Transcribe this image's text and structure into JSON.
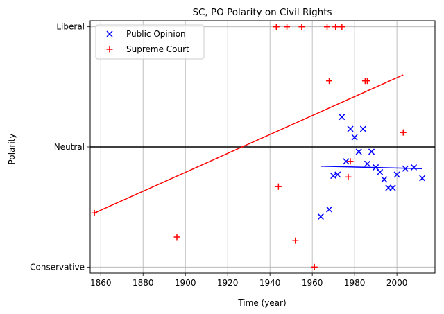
{
  "chart_data": {
    "type": "scatter",
    "title": "SC, PO Polarity on Civil Rights",
    "xlabel": "Time (year)",
    "ylabel": "Polarity",
    "xlim": [
      1855,
      2018
    ],
    "ylim": [
      -1.05,
      1.05
    ],
    "x_ticks": [
      {
        "value": 1860,
        "label": "1860"
      },
      {
        "value": 1880,
        "label": "1880"
      },
      {
        "value": 1900,
        "label": "1900"
      },
      {
        "value": 1920,
        "label": "1920"
      },
      {
        "value": 1940,
        "label": "1940"
      },
      {
        "value": 1960,
        "label": "1960"
      },
      {
        "value": 1980,
        "label": "1980"
      },
      {
        "value": 2000,
        "label": "2000"
      }
    ],
    "y_ticks": [
      {
        "value": -1,
        "label": "Conservative"
      },
      {
        "value": 0,
        "label": "Neutral"
      },
      {
        "value": 1,
        "label": "Liberal"
      }
    ],
    "grid": true,
    "legend_position": "top-left",
    "neutral_line": {
      "y": 0,
      "color": "#000000"
    },
    "series": [
      {
        "name": "Public Opinion",
        "marker": "x",
        "color": "#0000ff",
        "x": [
          1964,
          1968,
          1970,
          1972,
          1974,
          1976,
          1978,
          1980,
          1982,
          1984,
          1986,
          1988,
          1990,
          1992,
          1994,
          1996,
          1998,
          2000,
          2004,
          2008,
          2012
        ],
        "y": [
          -0.58,
          -0.52,
          -0.24,
          -0.23,
          0.25,
          -0.12,
          0.15,
          0.08,
          -0.04,
          0.15,
          -0.14,
          -0.04,
          -0.17,
          -0.21,
          -0.27,
          -0.34,
          -0.34,
          -0.23,
          -0.18,
          -0.17,
          -0.26
        ]
      },
      {
        "name": "Supreme Court",
        "marker": "+",
        "color": "#ff0000",
        "x": [
          1857,
          1896,
          1944,
          1952,
          1961,
          1943,
          1948,
          1955,
          1967,
          1971,
          1974,
          1968,
          1986,
          1977,
          1978,
          1985,
          2003
        ],
        "y": [
          -0.55,
          -0.75,
          -0.33,
          -0.78,
          -1.0,
          1.0,
          1.0,
          1.0,
          1.0,
          1.0,
          1.0,
          0.55,
          0.55,
          -0.25,
          -0.12,
          0.55,
          0.12
        ]
      }
    ],
    "trend_lines": [
      {
        "series": "Public Opinion",
        "color": "#0000ff",
        "x": [
          1964,
          2012
        ],
        "y": [
          -0.16,
          -0.18
        ]
      },
      {
        "series": "Supreme Court",
        "color": "#ff0000",
        "x": [
          1857,
          2003
        ],
        "y": [
          -0.55,
          0.6
        ]
      }
    ]
  }
}
